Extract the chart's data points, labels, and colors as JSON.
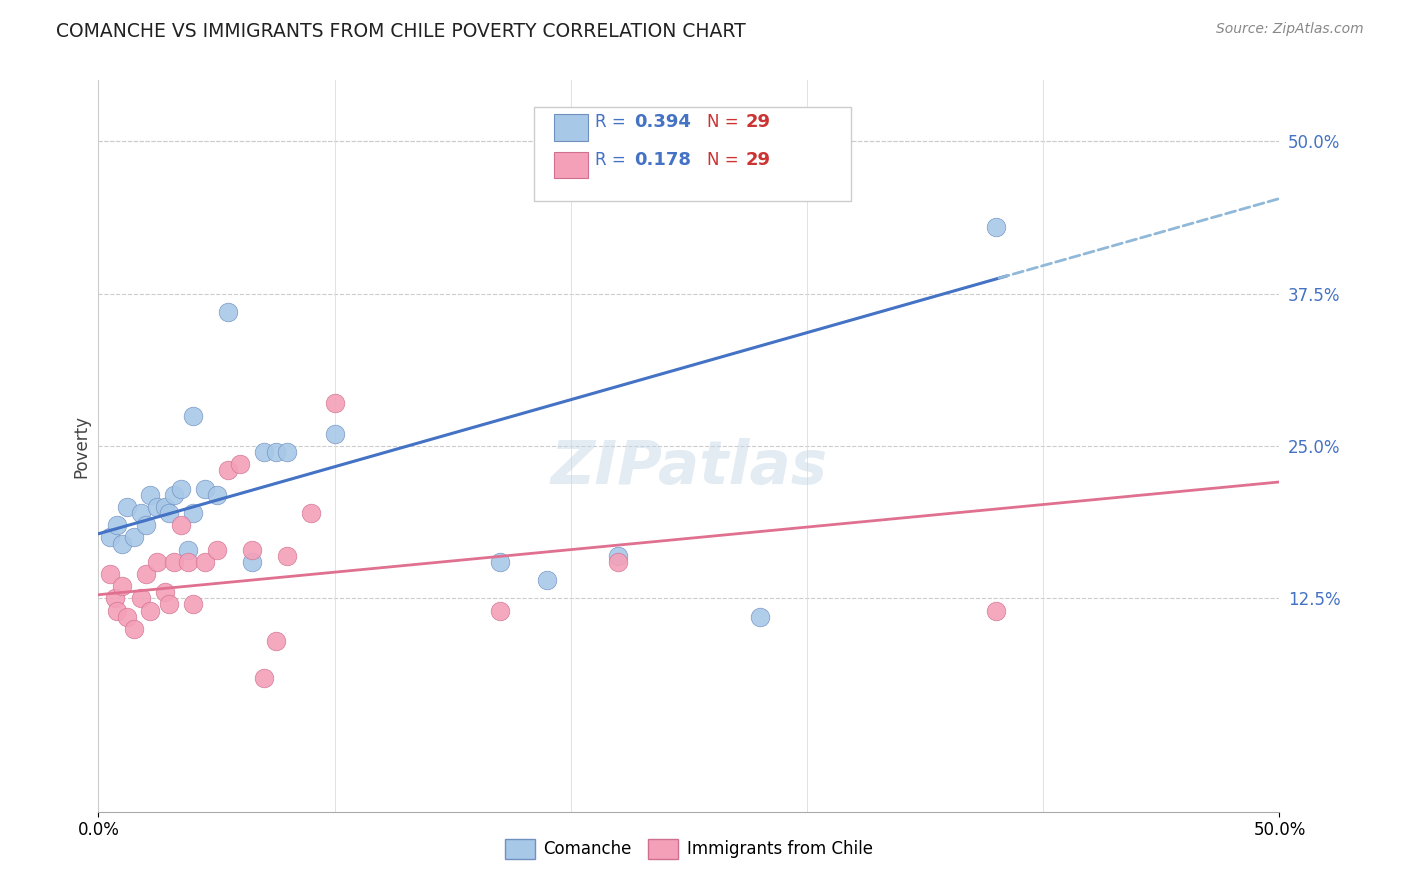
{
  "title": "COMANCHE VS IMMIGRANTS FROM CHILE POVERTY CORRELATION CHART",
  "source": "Source: ZipAtlas.com",
  "ylabel": "Poverty",
  "xlim": [
    0,
    0.5
  ],
  "ylim": [
    -0.05,
    0.55
  ],
  "ytick_labels": [
    "12.5%",
    "25.0%",
    "37.5%",
    "50.0%"
  ],
  "ytick_values": [
    0.125,
    0.25,
    0.375,
    0.5
  ],
  "color_blue": "#a8c8e8",
  "color_pink": "#f4a0b8",
  "color_blue_line": "#4472c4",
  "color_pink_line": "#e07090",
  "watermark": "ZIPatlas",
  "comanche_x": [
    0.005,
    0.008,
    0.01,
    0.012,
    0.015,
    0.018,
    0.02,
    0.022,
    0.025,
    0.028,
    0.03,
    0.032,
    0.035,
    0.038,
    0.04,
    0.04,
    0.045,
    0.05,
    0.055,
    0.065,
    0.07,
    0.075,
    0.08,
    0.1,
    0.17,
    0.19,
    0.22,
    0.28,
    0.38
  ],
  "comanche_y": [
    0.175,
    0.185,
    0.17,
    0.2,
    0.175,
    0.195,
    0.185,
    0.21,
    0.2,
    0.2,
    0.195,
    0.21,
    0.215,
    0.165,
    0.195,
    0.275,
    0.215,
    0.21,
    0.36,
    0.155,
    0.245,
    0.245,
    0.245,
    0.26,
    0.155,
    0.14,
    0.16,
    0.11,
    0.43
  ],
  "chile_x": [
    0.005,
    0.007,
    0.008,
    0.01,
    0.012,
    0.015,
    0.018,
    0.02,
    0.022,
    0.025,
    0.028,
    0.03,
    0.032,
    0.035,
    0.038,
    0.04,
    0.045,
    0.05,
    0.055,
    0.06,
    0.065,
    0.07,
    0.075,
    0.08,
    0.09,
    0.1,
    0.17,
    0.22,
    0.38
  ],
  "chile_y": [
    0.145,
    0.125,
    0.115,
    0.135,
    0.11,
    0.1,
    0.125,
    0.145,
    0.115,
    0.155,
    0.13,
    0.12,
    0.155,
    0.185,
    0.155,
    0.12,
    0.155,
    0.165,
    0.23,
    0.235,
    0.165,
    0.06,
    0.09,
    0.16,
    0.195,
    0.285,
    0.115,
    0.155,
    0.115
  ],
  "blue_line_intercept": 0.178,
  "blue_line_slope": 0.55,
  "pink_line_intercept": 0.128,
  "pink_line_slope": 0.185
}
